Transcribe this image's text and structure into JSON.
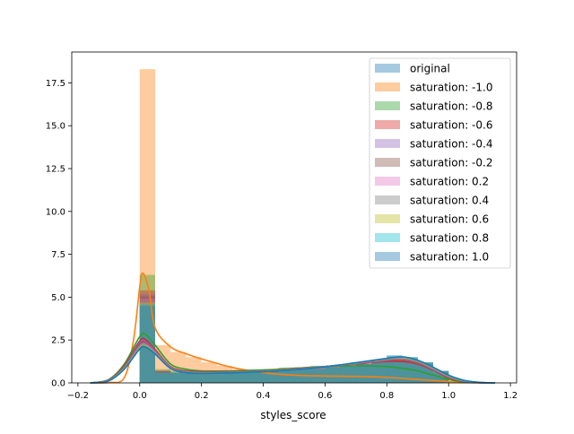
{
  "chart_data": {
    "type": "histogram_kde",
    "xlabel": "styles_score",
    "ylabel": "",
    "xlim": [
      -0.22,
      1.22
    ],
    "ylim": [
      0,
      19.3
    ],
    "xticks": [
      -0.2,
      0.0,
      0.2,
      0.4,
      0.6,
      0.8,
      1.0,
      1.2
    ],
    "xtick_labels": [
      "−0.2",
      "0.0",
      "0.2",
      "0.4",
      "0.6",
      "0.8",
      "1.0",
      "1.2"
    ],
    "yticks": [
      0.0,
      2.5,
      5.0,
      7.5,
      10.0,
      12.5,
      15.0,
      17.5
    ],
    "ytick_labels": [
      "0.0",
      "2.5",
      "5.0",
      "7.5",
      "10.0",
      "12.5",
      "15.0",
      "17.5"
    ],
    "grid": false,
    "legend_position": "top-right",
    "bin_edges": [
      0.0,
      0.05,
      0.1,
      0.15,
      0.2,
      0.25,
      0.3,
      0.35,
      0.4,
      0.45,
      0.5,
      0.55,
      0.6,
      0.65,
      0.7,
      0.75,
      0.8,
      0.85,
      0.9,
      0.95,
      1.0
    ],
    "series": [
      {
        "name": "original",
        "color": "#1f77b4",
        "hist": [
          5.0,
          0.7,
          0.6,
          0.6,
          0.6,
          0.7,
          0.6,
          0.6,
          0.7,
          0.7,
          0.8,
          0.8,
          0.9,
          1.0,
          1.1,
          1.3,
          1.5,
          1.3,
          1.1,
          0.6
        ],
        "kde_x": [
          -0.16,
          -0.1,
          -0.05,
          0.0,
          0.02,
          0.05,
          0.1,
          0.15,
          0.2,
          0.3,
          0.4,
          0.5,
          0.6,
          0.7,
          0.8,
          0.85,
          0.9,
          0.95,
          1.0,
          1.05,
          1.1,
          1.15
        ],
        "kde_y": [
          0.0,
          0.15,
          0.9,
          2.2,
          2.3,
          1.8,
          0.9,
          0.65,
          0.6,
          0.62,
          0.68,
          0.8,
          0.95,
          1.15,
          1.35,
          1.4,
          1.2,
          0.8,
          0.35,
          0.1,
          0.02,
          0.0
        ]
      },
      {
        "name": "saturation: -1.0",
        "color": "#ff7f0e",
        "hist": [
          18.3,
          2.2,
          1.8,
          1.5,
          1.2,
          1.0,
          0.8,
          0.6,
          0.5,
          0.5,
          0.4,
          0.4,
          0.4,
          0.4,
          0.4,
          0.3,
          0.3,
          0.2,
          0.2,
          0.1
        ],
        "kde_x": [
          -0.16,
          -0.1,
          -0.05,
          -0.02,
          0.0,
          0.01,
          0.03,
          0.05,
          0.1,
          0.15,
          0.2,
          0.3,
          0.4,
          0.5,
          0.6,
          0.7,
          0.8,
          0.9,
          1.0,
          1.05,
          1.1
        ],
        "kde_y": [
          0.0,
          0.02,
          0.3,
          2.5,
          5.6,
          6.4,
          5.4,
          3.2,
          2.1,
          1.7,
          1.4,
          0.9,
          0.6,
          0.45,
          0.4,
          0.38,
          0.32,
          0.2,
          0.07,
          0.02,
          0.0
        ]
      },
      {
        "name": "saturation: -0.8",
        "color": "#2ca02c",
        "hist": [
          6.3,
          0.8,
          0.7,
          0.7,
          0.7,
          0.7,
          0.7,
          0.8,
          0.8,
          0.9,
          0.9,
          1.0,
          1.0,
          1.0,
          1.0,
          1.0,
          1.0,
          0.9,
          0.7,
          0.3
        ],
        "kde_x": [
          -0.16,
          -0.1,
          -0.05,
          0.0,
          0.02,
          0.05,
          0.1,
          0.15,
          0.2,
          0.3,
          0.4,
          0.5,
          0.6,
          0.7,
          0.8,
          0.85,
          0.9,
          0.95,
          1.0,
          1.05,
          1.1,
          1.15
        ],
        "kde_y": [
          0.0,
          0.2,
          1.1,
          2.7,
          2.8,
          2.2,
          1.1,
          0.8,
          0.7,
          0.7,
          0.75,
          0.85,
          0.95,
          1.0,
          0.95,
          0.85,
          0.7,
          0.45,
          0.2,
          0.05,
          0.01,
          0.0
        ]
      },
      {
        "name": "saturation: -0.6",
        "color": "#d62728",
        "hist": [
          5.4,
          0.7,
          0.6,
          0.6,
          0.6,
          0.7,
          0.7,
          0.7,
          0.8,
          0.8,
          0.9,
          0.9,
          1.0,
          1.0,
          1.1,
          1.2,
          1.3,
          1.2,
          1.0,
          0.5
        ],
        "kde_x": [
          -0.16,
          -0.1,
          -0.05,
          0.0,
          0.02,
          0.05,
          0.1,
          0.15,
          0.2,
          0.3,
          0.4,
          0.5,
          0.6,
          0.7,
          0.8,
          0.85,
          0.9,
          0.95,
          1.0,
          1.05,
          1.1,
          1.15
        ],
        "kde_y": [
          0.0,
          0.18,
          1.0,
          2.45,
          2.5,
          1.95,
          0.95,
          0.7,
          0.65,
          0.65,
          0.7,
          0.82,
          0.95,
          1.1,
          1.25,
          1.25,
          1.1,
          0.75,
          0.3,
          0.08,
          0.01,
          0.0
        ]
      },
      {
        "name": "saturation: -0.4",
        "color": "#9467bd",
        "hist": [
          5.2,
          0.7,
          0.6,
          0.6,
          0.6,
          0.7,
          0.6,
          0.7,
          0.7,
          0.8,
          0.8,
          0.9,
          1.0,
          1.0,
          1.1,
          1.3,
          1.4,
          1.3,
          1.1,
          0.6
        ],
        "kde_x": [
          -0.16,
          -0.1,
          -0.05,
          0.0,
          0.02,
          0.05,
          0.1,
          0.15,
          0.2,
          0.3,
          0.4,
          0.5,
          0.6,
          0.7,
          0.8,
          0.85,
          0.9,
          0.95,
          1.0,
          1.05,
          1.1,
          1.15
        ],
        "kde_y": [
          0.0,
          0.16,
          0.95,
          2.35,
          2.4,
          1.88,
          0.92,
          0.67,
          0.62,
          0.63,
          0.69,
          0.8,
          0.95,
          1.12,
          1.3,
          1.35,
          1.15,
          0.78,
          0.33,
          0.09,
          0.01,
          0.0
        ]
      },
      {
        "name": "saturation: -0.2",
        "color": "#8c564b",
        "hist": [
          5.1,
          0.7,
          0.6,
          0.6,
          0.6,
          0.7,
          0.6,
          0.6,
          0.7,
          0.7,
          0.8,
          0.8,
          0.9,
          1.0,
          1.1,
          1.3,
          1.5,
          1.3,
          1.1,
          0.6
        ],
        "kde_x": [
          -0.16,
          -0.1,
          -0.05,
          0.0,
          0.02,
          0.05,
          0.1,
          0.15,
          0.2,
          0.3,
          0.4,
          0.5,
          0.6,
          0.7,
          0.8,
          0.85,
          0.9,
          0.95,
          1.0,
          1.05,
          1.1,
          1.15
        ],
        "kde_y": [
          0.0,
          0.15,
          0.92,
          2.25,
          2.32,
          1.82,
          0.9,
          0.65,
          0.6,
          0.62,
          0.68,
          0.8,
          0.95,
          1.14,
          1.33,
          1.38,
          1.18,
          0.79,
          0.34,
          0.1,
          0.02,
          0.0
        ]
      },
      {
        "name": "saturation: 0.2",
        "color": "#e377c2",
        "hist": [
          4.9,
          0.6,
          0.6,
          0.6,
          0.6,
          0.7,
          0.6,
          0.6,
          0.7,
          0.7,
          0.8,
          0.8,
          0.9,
          1.0,
          1.1,
          1.3,
          1.5,
          1.4,
          1.1,
          0.7
        ],
        "kde_x": [
          -0.16,
          -0.1,
          -0.05,
          0.0,
          0.02,
          0.05,
          0.1,
          0.15,
          0.2,
          0.3,
          0.4,
          0.5,
          0.6,
          0.7,
          0.8,
          0.85,
          0.9,
          0.95,
          1.0,
          1.05,
          1.1,
          1.15
        ],
        "kde_y": [
          0.0,
          0.14,
          0.88,
          2.15,
          2.25,
          1.78,
          0.88,
          0.63,
          0.59,
          0.61,
          0.67,
          0.79,
          0.94,
          1.15,
          1.37,
          1.42,
          1.23,
          0.82,
          0.37,
          0.11,
          0.02,
          0.0
        ]
      },
      {
        "name": "saturation: 0.4",
        "color": "#7f7f7f",
        "hist": [
          4.8,
          0.6,
          0.6,
          0.6,
          0.6,
          0.6,
          0.6,
          0.6,
          0.7,
          0.7,
          0.8,
          0.8,
          0.9,
          1.0,
          1.1,
          1.3,
          1.5,
          1.4,
          1.2,
          0.7
        ],
        "kde_x": [
          -0.16,
          -0.1,
          -0.05,
          0.0,
          0.02,
          0.05,
          0.1,
          0.15,
          0.2,
          0.3,
          0.4,
          0.5,
          0.6,
          0.7,
          0.8,
          0.85,
          0.9,
          0.95,
          1.0,
          1.05,
          1.1,
          1.15
        ],
        "kde_y": [
          0.0,
          0.14,
          0.86,
          2.1,
          2.2,
          1.75,
          0.87,
          0.62,
          0.58,
          0.6,
          0.66,
          0.78,
          0.94,
          1.16,
          1.38,
          1.45,
          1.25,
          0.85,
          0.39,
          0.12,
          0.02,
          0.0
        ]
      },
      {
        "name": "saturation: 0.6",
        "color": "#bcbd22",
        "hist": [
          4.7,
          0.6,
          0.6,
          0.6,
          0.6,
          0.6,
          0.6,
          0.6,
          0.7,
          0.7,
          0.8,
          0.8,
          0.9,
          1.0,
          1.1,
          1.3,
          1.5,
          1.5,
          1.2,
          0.7
        ],
        "kde_x": [
          -0.16,
          -0.1,
          -0.05,
          0.0,
          0.02,
          0.05,
          0.1,
          0.15,
          0.2,
          0.3,
          0.4,
          0.5,
          0.6,
          0.7,
          0.8,
          0.85,
          0.9,
          0.95,
          1.0,
          1.05,
          1.1,
          1.15
        ],
        "kde_y": [
          0.0,
          0.13,
          0.84,
          2.05,
          2.15,
          1.72,
          0.86,
          0.61,
          0.57,
          0.6,
          0.66,
          0.78,
          0.93,
          1.16,
          1.4,
          1.47,
          1.28,
          0.88,
          0.41,
          0.13,
          0.02,
          0.0
        ]
      },
      {
        "name": "saturation: 0.8",
        "color": "#17becf",
        "hist": [
          4.6,
          0.6,
          0.6,
          0.6,
          0.6,
          0.6,
          0.6,
          0.6,
          0.7,
          0.7,
          0.8,
          0.8,
          0.9,
          1.0,
          1.1,
          1.3,
          1.6,
          1.5,
          1.2,
          0.7
        ],
        "kde_x": [
          -0.16,
          -0.1,
          -0.05,
          0.0,
          0.02,
          0.05,
          0.1,
          0.15,
          0.2,
          0.3,
          0.4,
          0.5,
          0.6,
          0.7,
          0.8,
          0.85,
          0.9,
          0.95,
          1.0,
          1.05,
          1.1,
          1.15
        ],
        "kde_y": [
          0.0,
          0.13,
          0.82,
          2.0,
          2.1,
          1.7,
          0.85,
          0.6,
          0.56,
          0.59,
          0.65,
          0.77,
          0.93,
          1.17,
          1.42,
          1.5,
          1.3,
          0.9,
          0.43,
          0.14,
          0.03,
          0.0
        ]
      },
      {
        "name": "saturation: 1.0",
        "color": "#1f77b4",
        "hist": [
          4.5,
          0.6,
          0.6,
          0.6,
          0.6,
          0.6,
          0.6,
          0.6,
          0.7,
          0.7,
          0.8,
          0.8,
          0.9,
          1.0,
          1.1,
          1.3,
          1.6,
          1.5,
          1.2,
          0.7
        ],
        "kde_x": [
          -0.16,
          -0.1,
          -0.05,
          0.0,
          0.02,
          0.05,
          0.1,
          0.15,
          0.2,
          0.3,
          0.4,
          0.5,
          0.6,
          0.7,
          0.8,
          0.85,
          0.9,
          0.95,
          1.0,
          1.05,
          1.1,
          1.15
        ],
        "kde_y": [
          0.0,
          0.12,
          0.8,
          1.98,
          2.08,
          1.68,
          0.84,
          0.6,
          0.56,
          0.59,
          0.65,
          0.77,
          0.93,
          1.18,
          1.43,
          1.52,
          1.32,
          0.92,
          0.45,
          0.15,
          0.03,
          0.0
        ]
      }
    ]
  }
}
